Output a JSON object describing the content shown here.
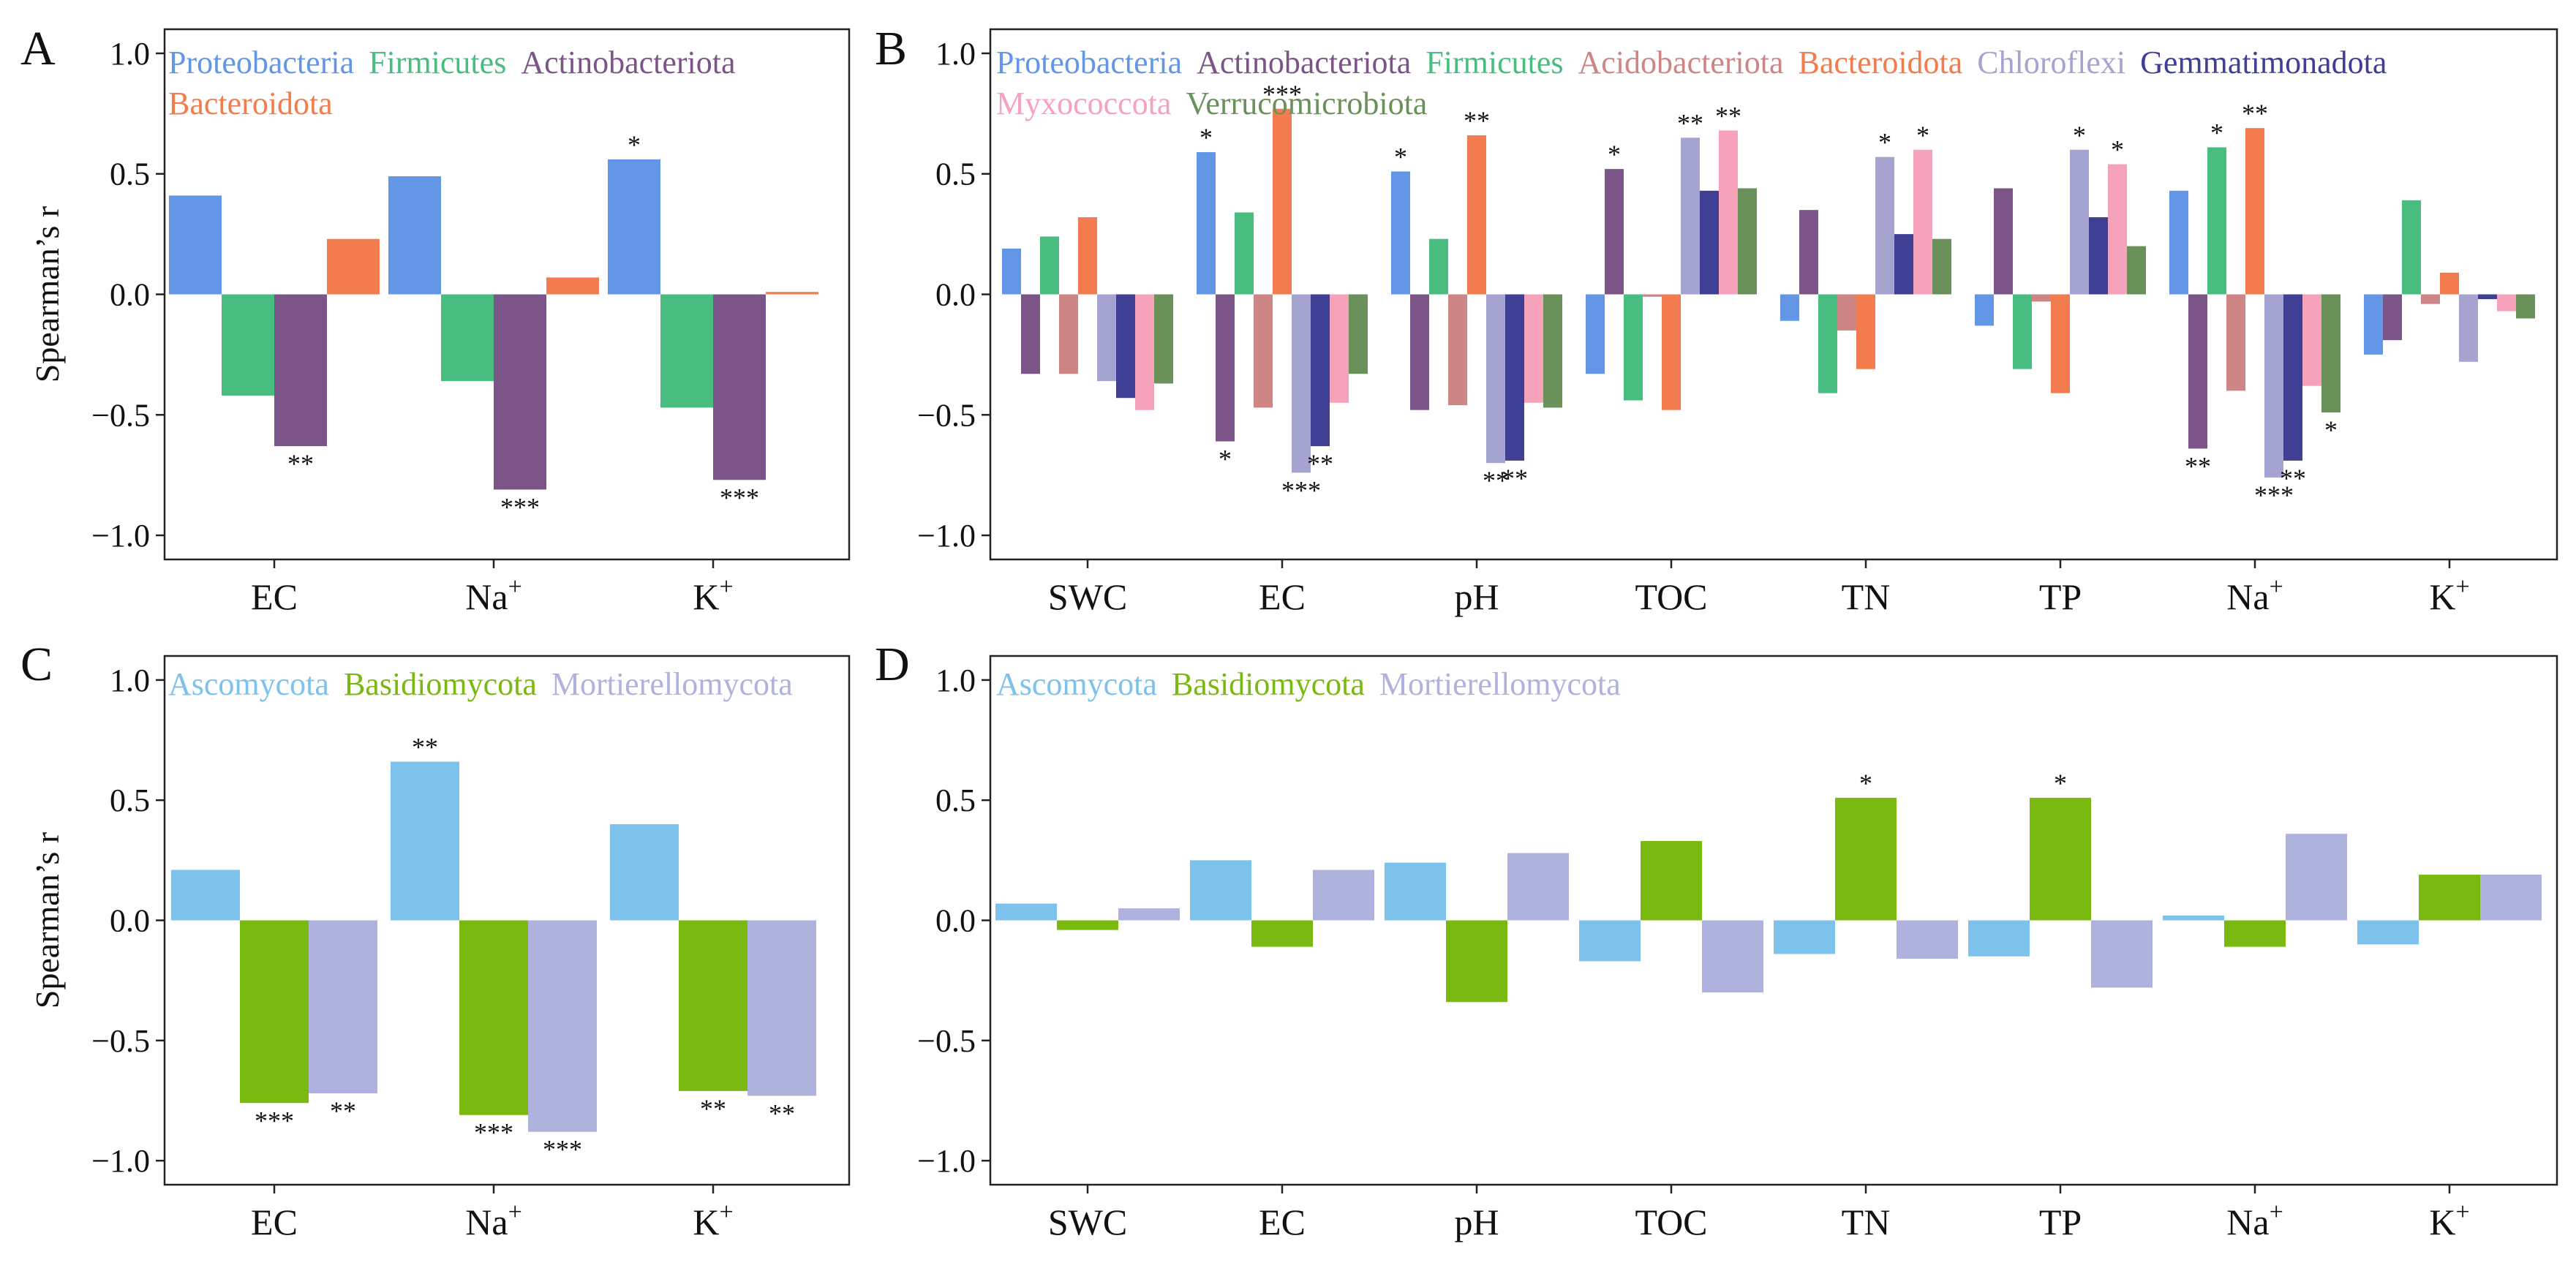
{
  "figure": {
    "ylabel": "Spearman’s r",
    "sig_key": {
      "1": "*",
      "2": "**",
      "3": "***"
    }
  },
  "colors": {
    "Proteobacteria": "#6496E8",
    "Firmicutes": "#49BD80",
    "Actinobacteriota": "#7B5587",
    "Bacteroidota": "#F37C4F",
    "Acidobacteriota": "#CE8586",
    "Chloroflexi": "#A5A3D0",
    "Gemmatimonadota": "#3F3F96",
    "Myxococcota": "#F6A2BA",
    "Verrucomicrobiota": "#6A9159",
    "Ascomycota": "#7DC2EA",
    "Basidiomycota": "#7AB910",
    "Mortierellomycota": "#AEB2DD"
  },
  "chart_data": [
    {
      "panel": "A",
      "type": "bar",
      "title": "",
      "xlabel": "",
      "ylabel": "Spearman’s r",
      "ylim": [
        -1.1,
        1.1
      ],
      "yticks": [
        "1.0",
        "0.5",
        "0.0",
        "−0.5",
        "−1.0"
      ],
      "categories": [
        "EC",
        "Na",
        "K"
      ],
      "category_sup": [
        "",
        "+",
        "+"
      ],
      "legend": [
        "Proteobacteria",
        "Firmicutes",
        "Actinobacteriota",
        "Bacteroidota"
      ],
      "series": [
        {
          "name": "Proteobacteria",
          "values": [
            0.41,
            0.49,
            0.56
          ],
          "sig": [
            0,
            0,
            1
          ]
        },
        {
          "name": "Firmicutes",
          "values": [
            -0.42,
            -0.36,
            -0.47
          ],
          "sig": [
            0,
            0,
            0
          ]
        },
        {
          "name": "Actinobacteriota",
          "values": [
            -0.63,
            -0.81,
            -0.77
          ],
          "sig": [
            2,
            3,
            3
          ]
        },
        {
          "name": "Bacteroidota",
          "values": [
            0.23,
            0.07,
            0.01
          ],
          "sig": [
            0,
            0,
            0
          ]
        }
      ]
    },
    {
      "panel": "B",
      "type": "bar",
      "title": "",
      "xlabel": "",
      "ylabel": "",
      "ylim": [
        -1.1,
        1.1
      ],
      "yticks": [
        "1.0",
        "0.5",
        "0.0",
        "−0.5",
        "−1.0"
      ],
      "categories": [
        "SWC",
        "EC",
        "pH",
        "TOC",
        "TN",
        "TP",
        "Na",
        "K"
      ],
      "category_sup": [
        "",
        "",
        "",
        "",
        "",
        "",
        "+",
        "+"
      ],
      "legend": [
        "Proteobacteria",
        "Actinobacteriota",
        "Firmicutes",
        "Acidobacteriota",
        "Bacteroidota",
        "Chloroflexi",
        "Gemmatimonadota",
        "Myxococcota",
        "Verrucomicrobiota"
      ],
      "series": [
        {
          "name": "Proteobacteria",
          "values": [
            0.19,
            0.59,
            0.51,
            -0.33,
            -0.11,
            -0.13,
            0.43,
            -0.25
          ],
          "sig": [
            0,
            1,
            1,
            0,
            0,
            0,
            0,
            0
          ]
        },
        {
          "name": "Actinobacteriota",
          "values": [
            -0.33,
            -0.61,
            -0.48,
            0.52,
            0.35,
            0.44,
            -0.64,
            -0.19
          ],
          "sig": [
            0,
            1,
            0,
            1,
            0,
            0,
            2,
            0
          ]
        },
        {
          "name": "Firmicutes",
          "values": [
            0.24,
            0.34,
            0.23,
            -0.44,
            -0.41,
            -0.31,
            0.61,
            0.39
          ],
          "sig": [
            0,
            0,
            0,
            0,
            0,
            0,
            1,
            0
          ]
        },
        {
          "name": "Acidobacteriota",
          "values": [
            -0.33,
            -0.47,
            -0.46,
            -0.01,
            -0.15,
            -0.03,
            -0.4,
            -0.04
          ],
          "sig": [
            0,
            0,
            0,
            0,
            0,
            0,
            0,
            0
          ]
        },
        {
          "name": "Bacteroidota",
          "values": [
            0.32,
            0.77,
            0.66,
            -0.48,
            -0.31,
            -0.41,
            0.69,
            0.09
          ],
          "sig": [
            0,
            3,
            2,
            0,
            0,
            0,
            2,
            0
          ]
        },
        {
          "name": "Chloroflexi",
          "values": [
            -0.36,
            -0.74,
            -0.7,
            0.65,
            0.57,
            0.6,
            -0.76,
            -0.28
          ],
          "sig": [
            0,
            3,
            2,
            2,
            1,
            1,
            3,
            0
          ]
        },
        {
          "name": "Gemmatimonadota",
          "values": [
            -0.43,
            -0.63,
            -0.69,
            0.43,
            0.25,
            0.32,
            -0.69,
            -0.02
          ],
          "sig": [
            0,
            2,
            2,
            0,
            0,
            0,
            2,
            0
          ]
        },
        {
          "name": "Myxococcota",
          "values": [
            -0.48,
            -0.45,
            -0.45,
            0.68,
            0.6,
            0.54,
            -0.38,
            -0.07
          ],
          "sig": [
            0,
            0,
            0,
            2,
            1,
            1,
            0,
            0
          ]
        },
        {
          "name": "Verrucomicrobiota",
          "values": [
            -0.37,
            -0.33,
            -0.47,
            0.44,
            0.23,
            0.2,
            -0.49,
            -0.1
          ],
          "sig": [
            0,
            0,
            0,
            0,
            0,
            0,
            1,
            0
          ]
        }
      ]
    },
    {
      "panel": "C",
      "type": "bar",
      "title": "",
      "xlabel": "",
      "ylabel": "Spearman’s r",
      "ylim": [
        -1.1,
        1.1
      ],
      "yticks": [
        "1.0",
        "0.5",
        "0.0",
        "−0.5",
        "−1.0"
      ],
      "categories": [
        "EC",
        "Na",
        "K"
      ],
      "category_sup": [
        "",
        "+",
        "+"
      ],
      "legend": [
        "Ascomycota",
        "Basidiomycota",
        "Mortierellomycota"
      ],
      "series": [
        {
          "name": "Ascomycota",
          "values": [
            0.21,
            0.66,
            0.4
          ],
          "sig": [
            0,
            2,
            0
          ]
        },
        {
          "name": "Basidiomycota",
          "values": [
            -0.76,
            -0.81,
            -0.71
          ],
          "sig": [
            3,
            3,
            2
          ]
        },
        {
          "name": "Mortierellomycota",
          "values": [
            -0.72,
            -0.88,
            -0.73
          ],
          "sig": [
            2,
            3,
            2
          ]
        }
      ]
    },
    {
      "panel": "D",
      "type": "bar",
      "title": "",
      "xlabel": "",
      "ylabel": "",
      "ylim": [
        -1.1,
        1.1
      ],
      "yticks": [
        "1.0",
        "0.5",
        "0.0",
        "−0.5",
        "−1.0"
      ],
      "categories": [
        "SWC",
        "EC",
        "pH",
        "TOC",
        "TN",
        "TP",
        "Na",
        "K"
      ],
      "category_sup": [
        "",
        "",
        "",
        "",
        "",
        "",
        "+",
        "+"
      ],
      "legend": [
        "Ascomycota",
        "Basidiomycota",
        "Mortierellomycota"
      ],
      "series": [
        {
          "name": "Ascomycota",
          "values": [
            0.07,
            0.25,
            0.24,
            -0.17,
            -0.14,
            -0.15,
            0.02,
            -0.1
          ],
          "sig": [
            0,
            0,
            0,
            0,
            0,
            0,
            0,
            0
          ]
        },
        {
          "name": "Basidiomycota",
          "values": [
            -0.04,
            -0.11,
            -0.34,
            0.33,
            0.51,
            0.51,
            -0.11,
            0.19
          ],
          "sig": [
            0,
            0,
            0,
            0,
            1,
            1,
            0,
            0
          ]
        },
        {
          "name": "Mortierellomycota",
          "values": [
            0.05,
            0.21,
            0.28,
            -0.3,
            -0.16,
            -0.28,
            0.36,
            0.19
          ],
          "sig": [
            0,
            0,
            0,
            0,
            0,
            0,
            0,
            0
          ]
        }
      ]
    }
  ]
}
